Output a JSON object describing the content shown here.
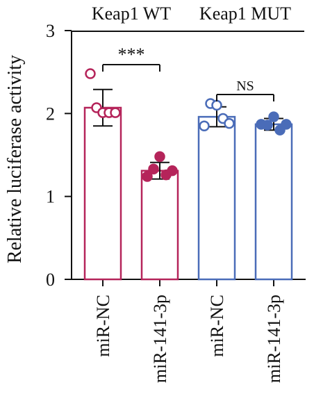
{
  "chart_data": {
    "type": "bar",
    "ylabel": "Relative luciferase activity",
    "ylim": [
      0,
      3
    ],
    "yticks": [
      0,
      1,
      2,
      3
    ],
    "groups": [
      {
        "label": "Keap1 WT",
        "color": "#B5245A",
        "bars": [
          {
            "category": "miR-NC",
            "mean": 2.07,
            "sd": 0.22,
            "filled_points": false,
            "points": [
              2.48,
              2.07,
              2.01,
              2.01,
              2.01
            ]
          },
          {
            "category": "miR-141-3p",
            "mean": 1.31,
            "sd": 0.1,
            "filled_points": true,
            "points": [
              1.24,
              1.33,
              1.48,
              1.26,
              1.31
            ]
          }
        ],
        "significance": "***"
      },
      {
        "label": "Keap1 MUT",
        "color": "#4A6CB8",
        "bars": [
          {
            "category": "miR-NC",
            "mean": 1.96,
            "sd": 0.12,
            "filled_points": false,
            "points": [
              1.85,
              2.12,
              2.1,
              1.94,
              1.88
            ]
          },
          {
            "category": "miR-141-3p",
            "mean": 1.87,
            "sd": 0.07,
            "filled_points": true,
            "points": [
              1.87,
              1.86,
              1.96,
              1.8,
              1.87
            ]
          }
        ],
        "significance": "NS"
      }
    ]
  }
}
